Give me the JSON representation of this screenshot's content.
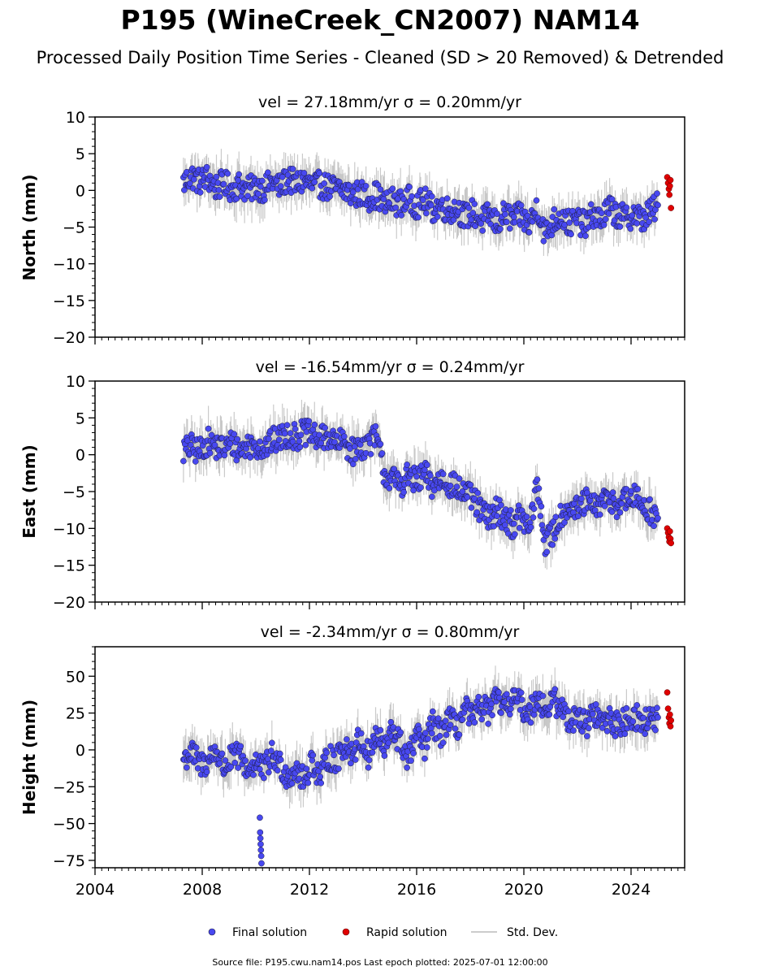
{
  "title": "P195 (WineCreek_CN2007) NAM14",
  "subtitle": "Processed Daily Position Time Series - Cleaned (SD > 20 Removed) & Detrended",
  "footer": "Source file: P195.cwu.nam14.pos  Last epoch plotted: 2025-07-01 12:00:00",
  "legend": {
    "final": "Final solution",
    "rapid": "Rapid solution",
    "sd": "Std. Dev."
  },
  "colors": {
    "final": "#4848f0",
    "rapid": "#e00000",
    "sd": "#b8b8b8",
    "edge": "#1a1a3a"
  },
  "chart_data": [
    {
      "type": "scatter",
      "component": "North",
      "panel_title": "vel = 27.18mm/yr   σ = 0.20mm/yr",
      "ylabel": "North (mm)",
      "xlim": [
        2004.0,
        2026.0
      ],
      "ylim": [
        -20,
        10
      ],
      "yticks": [
        10,
        5,
        0,
        -5,
        -10,
        -15,
        -20
      ],
      "ytick_labels": [
        "10",
        "5",
        "0",
        "−5",
        "−10",
        "−15",
        "−20"
      ],
      "x": [
        2007.3,
        2007.6,
        2007.9,
        2008.2,
        2008.5,
        2008.8,
        2009.1,
        2009.4,
        2009.7,
        2010.0,
        2010.3,
        2010.6,
        2010.9,
        2011.2,
        2011.5,
        2011.8,
        2012.1,
        2012.4,
        2012.7,
        2013.0,
        2013.3,
        2013.6,
        2013.9,
        2014.2,
        2014.5,
        2014.8,
        2015.1,
        2015.4,
        2015.7,
        2016.0,
        2016.3,
        2016.6,
        2016.9,
        2017.2,
        2017.5,
        2017.8,
        2018.1,
        2018.4,
        2018.7,
        2019.0,
        2019.3,
        2019.6,
        2019.9,
        2020.2,
        2020.5,
        2020.8,
        2021.1,
        2021.4,
        2021.7,
        2022.0,
        2022.3,
        2022.6,
        2022.9,
        2023.2,
        2023.5,
        2023.8,
        2024.1,
        2024.4,
        2024.7,
        2025.0
      ],
      "y": [
        1.0,
        2.0,
        1.2,
        1.8,
        0.4,
        1.0,
        0.2,
        0.8,
        0.0,
        0.6,
        0.2,
        1.2,
        0.4,
        1.6,
        0.8,
        1.4,
        0.6,
        0.8,
        0.4,
        0.2,
        0.0,
        -0.6,
        -0.4,
        -1.0,
        -0.6,
        -2.0,
        -1.4,
        -1.8,
        -1.2,
        -2.0,
        -1.4,
        -2.6,
        -2.0,
        -2.8,
        -2.4,
        -3.6,
        -3.0,
        -4.2,
        -3.4,
        -4.6,
        -3.2,
        -4.0,
        -3.4,
        -4.8,
        -2.2,
        -6.0,
        -4.2,
        -3.4,
        -4.6,
        -4.0,
        -4.8,
        -3.2,
        -4.0,
        -2.4,
        -3.4,
        -3.8,
        -3.2,
        -4.0,
        -3.0,
        -2.0
      ],
      "rapid_x": [
        2025.35,
        2025.38,
        2025.41,
        2025.43,
        2025.45,
        2025.47,
        2025.49
      ],
      "rapid_y": [
        1.8,
        1.0,
        0.2,
        -0.6,
        0.6,
        1.4,
        -2.4
      ]
    },
    {
      "type": "scatter",
      "component": "East",
      "panel_title": "vel = -16.54mm/yr   σ = 0.24mm/yr",
      "ylabel": "East (mm)",
      "xlim": [
        2004.0,
        2026.0
      ],
      "ylim": [
        -20,
        10
      ],
      "yticks": [
        10,
        5,
        0,
        -5,
        -10,
        -15,
        -20
      ],
      "ytick_labels": [
        "10",
        "5",
        "0",
        "−5",
        "−10",
        "−15",
        "−20"
      ],
      "x": [
        2007.3,
        2007.6,
        2007.9,
        2008.2,
        2008.5,
        2008.8,
        2009.1,
        2009.4,
        2009.7,
        2010.0,
        2010.3,
        2010.6,
        2010.9,
        2011.2,
        2011.5,
        2011.8,
        2012.1,
        2012.4,
        2012.7,
        2013.0,
        2013.3,
        2013.6,
        2013.9,
        2014.2,
        2014.5,
        2014.8,
        2015.1,
        2015.4,
        2015.7,
        2016.0,
        2016.3,
        2016.6,
        2016.9,
        2017.2,
        2017.5,
        2017.8,
        2018.1,
        2018.4,
        2018.7,
        2019.0,
        2019.3,
        2019.6,
        2019.9,
        2020.2,
        2020.5,
        2020.8,
        2021.1,
        2021.4,
        2021.7,
        2022.0,
        2022.3,
        2022.6,
        2022.9,
        2023.2,
        2023.5,
        2023.8,
        2024.1,
        2024.4,
        2024.7,
        2025.0
      ],
      "y": [
        0.6,
        1.0,
        0.4,
        1.8,
        1.2,
        0.8,
        1.6,
        0.6,
        1.2,
        1.4,
        0.8,
        1.8,
        2.2,
        2.8,
        2.4,
        3.0,
        2.6,
        2.0,
        2.6,
        1.4,
        1.8,
        0.4,
        1.0,
        1.6,
        2.4,
        -2.6,
        -3.4,
        -4.0,
        -2.8,
        -3.8,
        -2.6,
        -4.4,
        -3.2,
        -3.8,
        -4.6,
        -5.2,
        -6.0,
        -7.6,
        -8.8,
        -7.4,
        -8.6,
        -9.6,
        -8.2,
        -10.4,
        -4.0,
        -12.0,
        -10.6,
        -8.0,
        -7.0,
        -7.6,
        -6.4,
        -7.2,
        -6.6,
        -6.0,
        -6.8,
        -6.2,
        -5.8,
        -6.6,
        -7.6,
        -8.6
      ],
      "rapid_x": [
        2025.35,
        2025.38,
        2025.41,
        2025.43,
        2025.45,
        2025.47,
        2025.49
      ],
      "rapid_y": [
        -10.0,
        -10.6,
        -11.2,
        -11.8,
        -10.4,
        -11.4,
        -12.0
      ]
    },
    {
      "type": "scatter",
      "component": "Height",
      "panel_title": "vel = -2.34mm/yr   σ = 0.80mm/yr",
      "ylabel": "Height (mm)",
      "xlim": [
        2004.0,
        2026.0
      ],
      "ylim": [
        -80,
        70
      ],
      "yticks": [
        50,
        25,
        0,
        -25,
        -50,
        -75
      ],
      "ytick_labels": [
        "50",
        "25",
        "0",
        "−25",
        "−50",
        "−75"
      ],
      "xticks": [
        2004,
        2008,
        2012,
        2016,
        2020,
        2024
      ],
      "xtick_labels": [
        "2004",
        "2008",
        "2012",
        "2016",
        "2020",
        "2024"
      ],
      "x": [
        2007.3,
        2007.6,
        2007.9,
        2008.2,
        2008.5,
        2008.8,
        2009.1,
        2009.4,
        2009.7,
        2010.0,
        2010.3,
        2010.6,
        2010.9,
        2011.2,
        2011.5,
        2011.8,
        2012.1,
        2012.4,
        2012.7,
        2013.0,
        2013.3,
        2013.6,
        2013.9,
        2014.2,
        2014.5,
        2014.8,
        2015.1,
        2015.4,
        2015.7,
        2016.0,
        2016.3,
        2016.6,
        2016.9,
        2017.2,
        2017.5,
        2017.8,
        2018.1,
        2018.4,
        2018.7,
        2019.0,
        2019.3,
        2019.6,
        2019.9,
        2020.2,
        2020.5,
        2020.8,
        2021.1,
        2021.4,
        2021.7,
        2022.0,
        2022.3,
        2022.6,
        2022.9,
        2023.2,
        2023.5,
        2023.8,
        2024.1,
        2024.4,
        2024.7,
        2025.0
      ],
      "y": [
        -6,
        -2,
        -10,
        -8,
        0,
        -12,
        -6,
        -4,
        -14,
        -8,
        -14,
        -4,
        -10,
        -18,
        -12,
        -22,
        -6,
        -20,
        -4,
        -8,
        4,
        -2,
        8,
        -4,
        10,
        0,
        14,
        4,
        -6,
        10,
        2,
        18,
        10,
        22,
        14,
        28,
        20,
        30,
        26,
        34,
        28,
        36,
        30,
        24,
        38,
        26,
        34,
        28,
        20,
        24,
        16,
        26,
        18,
        22,
        16,
        20,
        24,
        18,
        20,
        22
      ],
      "outliers_x": [
        2010.15,
        2010.16,
        2010.17,
        2010.18,
        2010.19,
        2010.2,
        2010.21
      ],
      "outliers_y": [
        -46,
        -56,
        -60,
        -64,
        -68,
        -72,
        -77
      ],
      "rapid_x": [
        2025.35,
        2025.38,
        2025.41,
        2025.43,
        2025.45,
        2025.47,
        2025.49
      ],
      "rapid_y": [
        39,
        28,
        22,
        18,
        24,
        16,
        20
      ]
    }
  ]
}
